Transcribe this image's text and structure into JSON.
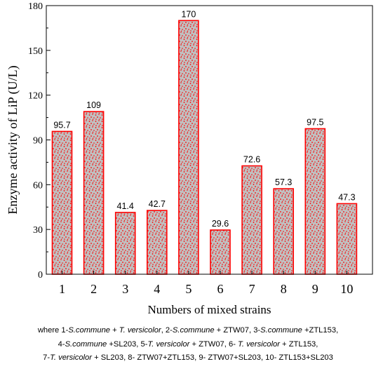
{
  "chart_data": {
    "type": "bar",
    "title": "",
    "xlabel": "Numbers of mixed strains",
    "ylabel": "Enzyme activity of LiP (U/L)",
    "ylim": [
      0,
      180
    ],
    "yticks": [
      0,
      30,
      60,
      90,
      120,
      150,
      180
    ],
    "categories": [
      "1",
      "2",
      "3",
      "4",
      "5",
      "6",
      "7",
      "8",
      "9",
      "10"
    ],
    "values": [
      95.7,
      109,
      41.4,
      42.7,
      170,
      29.6,
      72.6,
      57.3,
      97.5,
      47.3
    ],
    "value_labels": [
      "95.7",
      "109",
      "41.4",
      "42.7",
      "170",
      "29.6",
      "72.6",
      "57.3",
      "97.5",
      "47.3"
    ],
    "bar_fill_color": "#c0c0c0",
    "bar_edge_color": "#ff0000",
    "bar_pattern": "red dots",
    "grid": false,
    "legend": "none"
  },
  "caption": {
    "line1": [
      {
        "t": "where 1-",
        "i": false
      },
      {
        "t": "S.commune",
        "i": true
      },
      {
        "t": " + ",
        "i": false
      },
      {
        "t": "T. versicolor",
        "i": true
      },
      {
        "t": ", 2-",
        "i": false
      },
      {
        "t": "S.commune",
        "i": true
      },
      {
        "t": " + ZTW07, 3-",
        "i": false
      },
      {
        "t": "S.commune",
        "i": true
      },
      {
        "t": " +ZTL153,",
        "i": false
      }
    ],
    "line2": [
      {
        "t": "4-",
        "i": false
      },
      {
        "t": "S.commune",
        "i": true
      },
      {
        "t": " +SL203, 5-",
        "i": false
      },
      {
        "t": "T. versicolor",
        "i": true
      },
      {
        "t": " + ZTW07, 6- ",
        "i": false
      },
      {
        "t": "T. versicolor",
        "i": true
      },
      {
        "t": " + ZTL153,",
        "i": false
      }
    ],
    "line3": [
      {
        "t": "7-",
        "i": false
      },
      {
        "t": "T. versicolor",
        "i": true
      },
      {
        "t": " + SL203, 8- ZTW07+ZTL153, 9- ZTW07+SL203, 10- ZTL153+SL203",
        "i": false
      }
    ]
  }
}
